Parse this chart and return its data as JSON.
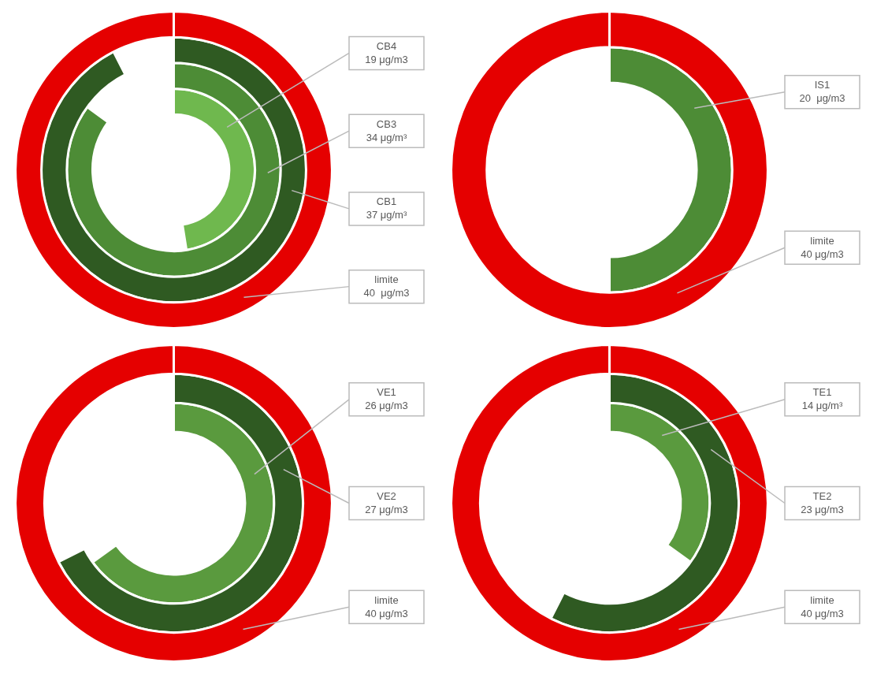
{
  "chart_data": [
    {
      "type": "other",
      "categories": [
        "CB4",
        "CB3",
        "CB1",
        "limite"
      ],
      "values": [
        19,
        34,
        37,
        40
      ],
      "colors": [
        "#6fb84e",
        "#4d8c36",
        "#2f5a22",
        "#e50000"
      ],
      "value_labels": [
        "19 μg/m3",
        "34 μg/m³",
        "37 μg/m³",
        "40  μg/m3"
      ]
    },
    {
      "type": "other",
      "categories": [
        "IS1",
        "limite"
      ],
      "values": [
        20,
        40
      ],
      "colors": [
        "#4d8c36",
        "#e50000"
      ],
      "value_labels": [
        "20  μg/m3",
        "40 μg/m3"
      ]
    },
    {
      "type": "other",
      "categories": [
        "VE1",
        "VE2",
        "limite"
      ],
      "values": [
        26,
        27,
        40
      ],
      "colors": [
        "#5a9a3e",
        "#2f5a22",
        "#e50000"
      ],
      "value_labels": [
        "26 μg/m3",
        "27 μg/m3",
        "40 μg/m3"
      ]
    },
    {
      "type": "other",
      "categories": [
        "TE1",
        "TE2",
        "limite"
      ],
      "values": [
        14,
        23,
        40
      ],
      "colors": [
        "#5a9a3e",
        "#2f5a22",
        "#e50000"
      ],
      "value_labels": [
        "14 μg/m³",
        "23 μg/m3",
        "40 μg/m3"
      ]
    }
  ]
}
